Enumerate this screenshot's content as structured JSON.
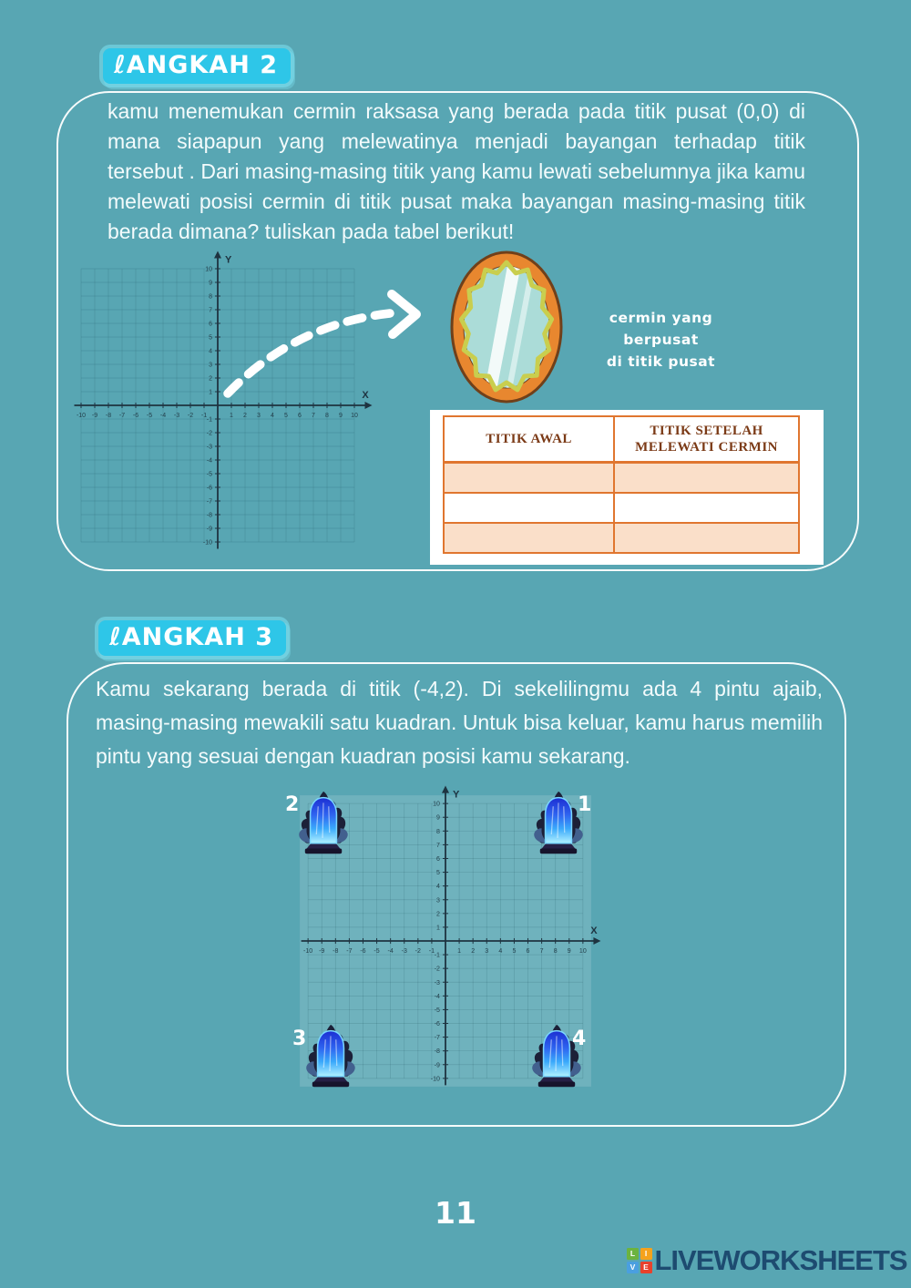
{
  "page": {
    "background": "#58a6b3",
    "number": "11"
  },
  "step2": {
    "badge": "ℓANGKAH 2",
    "paragraph": "kamu menemukan cermin raksasa yang berada pada titik pusat (0,0) di mana siapapun yang melewatinya menjadi bayangan terhadap titik tersebut . Dari masing-masing titik yang kamu  lewati sebelumnya jika kamu melewati posisi cermin di titik pusat maka bayangan masing-masing titik berada dimana? tuliskan pada tabel berikut!",
    "mirror_caption": {
      "line1": "cermin yang berpusat",
      "line2": "di titik pusat"
    },
    "table": {
      "headers": [
        "TITIK AWAL",
        "TITIK SETELAH MELEWATI CERMIN"
      ],
      "rows": [
        [
          "",
          ""
        ],
        [
          "",
          ""
        ],
        [
          "",
          ""
        ]
      ],
      "border_color": "#e0762f",
      "header_text_color": "#7b3a16",
      "row_fill": "#fadfc9"
    }
  },
  "step3": {
    "badge": "ℓANGKAH 3",
    "paragraph": "Kamu sekarang berada di titik (-4,2). Di sekelilingmu ada 4 pintu ajaib, masing-masing mewakili satu kuadran. Untuk bisa keluar, kamu harus memilih pintu yang sesuai dengan kuadran posisi kamu sekarang.",
    "doors": [
      {
        "label": "1"
      },
      {
        "label": "2"
      },
      {
        "label": "3"
      },
      {
        "label": "4"
      }
    ]
  },
  "grid": {
    "xmin": -10,
    "xmax": 10,
    "ymin": -10,
    "ymax": 10,
    "step": 1,
    "xlabel": "X",
    "ylabel": "Y"
  },
  "colors": {
    "badge": "#2ec6e8",
    "panel_border": "#ffffff",
    "axis": "#1e3340"
  },
  "footer": {
    "logo_text": "LIVEWORKSHEETS",
    "logo_squares": [
      {
        "letter": "L",
        "color": "#6cb33f"
      },
      {
        "letter": "I",
        "color": "#f5a21c"
      },
      {
        "letter": "V",
        "color": "#4a9fe0"
      },
      {
        "letter": "E",
        "color": "#e8412c"
      }
    ]
  }
}
